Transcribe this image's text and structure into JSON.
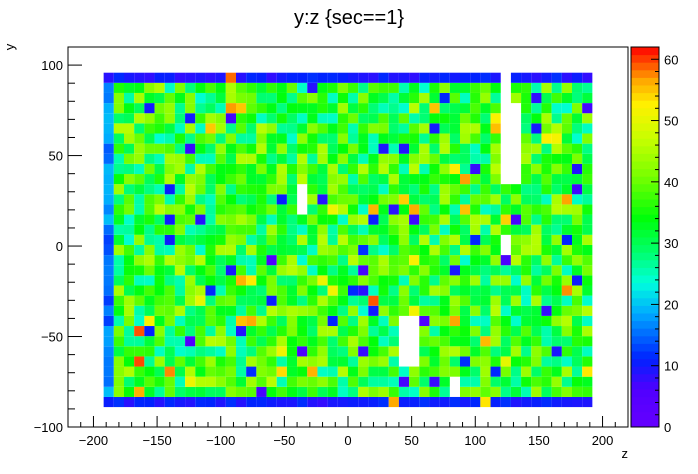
{
  "chart_data": {
    "type": "heatmap",
    "title": "y:z {sec==1}",
    "xlabel": "z",
    "ylabel": "y",
    "xlim": [
      -220,
      220
    ],
    "ylim": [
      -100,
      110
    ],
    "x_ticks": [
      -200,
      -150,
      -100,
      -50,
      0,
      50,
      100,
      150,
      200
    ],
    "y_ticks": [
      -100,
      -50,
      0,
      50,
      100
    ],
    "colorbar": {
      "min": 0,
      "max": 62,
      "ticks": [
        0,
        10,
        20,
        30,
        40,
        50,
        60
      ]
    },
    "bins": {
      "z_start": -192,
      "z_width": 8,
      "nz": 48,
      "y_start": -89,
      "y_width": 5.6,
      "ny": 33
    },
    "holes": [
      {
        "z": [
          -40,
          -32
        ],
        "y_bin": [
          19,
          21
        ]
      },
      {
        "z": [
          40,
          56
        ],
        "y_bin": [
          4,
          8
        ]
      },
      {
        "z": [
          80,
          88
        ],
        "y_bin": [
          1,
          2
        ]
      },
      {
        "z": [
          120,
          128
        ],
        "y_bin": [
          15,
          16
        ]
      },
      {
        "z": [
          120,
          128
        ],
        "y_bin": [
          22,
          32
        ]
      },
      {
        "z": [
          128,
          136
        ],
        "y_bin": [
          22,
          29
        ]
      }
    ],
    "edge_value": 8,
    "core_mean": 35
  }
}
